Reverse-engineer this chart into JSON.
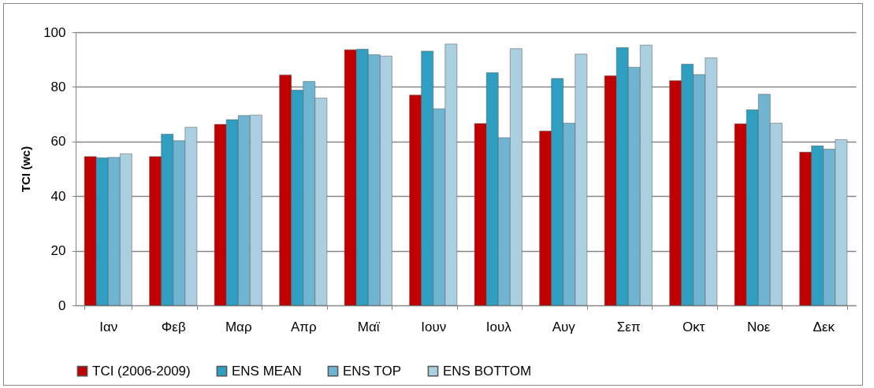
{
  "chart_data": {
    "type": "bar",
    "ylabel": "TCI (wc)",
    "categories": [
      "Ιαν",
      "Φεβ",
      "Μαρ",
      "Απρ",
      "Μαϊ",
      "Ιουν",
      "Ιουλ",
      "Αυγ",
      "Σεπ",
      "Οκτ",
      "Νοε",
      "Δεκ"
    ],
    "series": [
      {
        "name": "TCI (2006-2009)",
        "color": "#c00000",
        "values": [
          54.5,
          54.5,
          66.3,
          84.4,
          93.6,
          77,
          66.6,
          63.8,
          84.1,
          82.3,
          66.5,
          56.1
        ]
      },
      {
        "name": "ENS MEAN",
        "color": "#2e9fc0",
        "values": [
          54,
          62.7,
          68,
          78.8,
          93.8,
          93.1,
          85.2,
          83.1,
          94.4,
          88.3,
          71.6,
          58.4
        ]
      },
      {
        "name": "ENS TOP",
        "color": "#6fb5d2",
        "values": [
          54.2,
          60.3,
          69.5,
          82,
          91.8,
          72,
          61.4,
          66.7,
          87.2,
          84.5,
          77.3,
          57.2
        ]
      },
      {
        "name": "ENS BOTTOM",
        "color": "#a9cfe0",
        "values": [
          55.5,
          65.2,
          69.7,
          75.9,
          91.3,
          95.7,
          94,
          92,
          95.3,
          90.6,
          66.7,
          60.7
        ]
      }
    ],
    "ylim": [
      0,
      100
    ],
    "yticks": [
      0,
      20,
      40,
      60,
      80,
      100
    ],
    "grid": "y",
    "legend": "bottom"
  }
}
